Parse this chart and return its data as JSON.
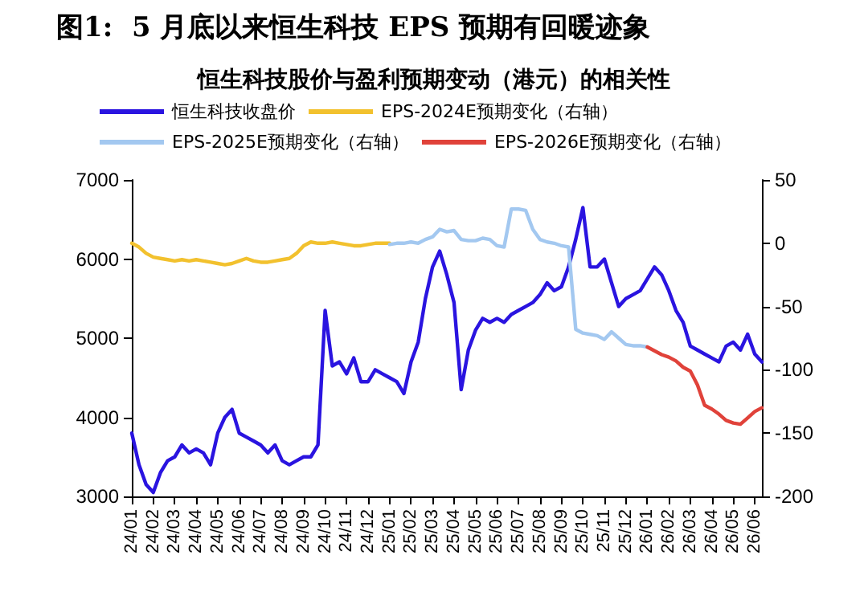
{
  "chart_data": {
    "type": "line",
    "title": "图1:  5 月底以来恒生科技 EPS 预期有回暖迹象",
    "subtitle": "恒生科技股价与盈利预期变动（港元）的相关性",
    "categories": [
      "24/01",
      null,
      null,
      "24/02",
      null,
      null,
      "24/03",
      null,
      null,
      "24/04",
      null,
      null,
      "24/05",
      null,
      null,
      "24/06",
      null,
      null,
      "24/07",
      null,
      null,
      "24/08",
      null,
      null,
      "24/09",
      null,
      null,
      "24/10",
      null,
      null,
      "24/11",
      null,
      null,
      "24/12",
      null,
      null,
      "25/01",
      null,
      null,
      "25/02",
      null,
      null,
      "25/03",
      null,
      null,
      "25/04",
      null,
      null,
      "25/05",
      null,
      null,
      "25/06",
      null,
      null,
      "25/07",
      null,
      null,
      "25/08",
      null,
      null,
      "25/09",
      null,
      null,
      "25/10",
      null,
      null,
      "25/11",
      null,
      null,
      "25/12",
      null,
      null,
      "26/01",
      null,
      null,
      "26/02",
      null,
      null,
      "26/03",
      null,
      null,
      "26/04",
      null,
      null,
      "26/05",
      null,
      null,
      "26/06",
      null
    ],
    "series": [
      {
        "name": "恒生科技收盘价",
        "color": "#2a14e0",
        "values": [
          3800,
          3400,
          3150,
          3050,
          3300,
          3450,
          3500,
          3650,
          3550,
          3600,
          3550,
          3400,
          3800,
          4000,
          4100,
          3800,
          3750,
          3700,
          3650,
          3550,
          3650,
          3450,
          3400,
          3450,
          3500,
          3500,
          3650,
          5350,
          4650,
          4700,
          4550,
          4750,
          4450,
          4450,
          4600,
          4550,
          4500,
          4450,
          4300,
          4700,
          4950,
          5500,
          5900,
          6100,
          5800,
          5450,
          4350,
          4850,
          5100,
          5250,
          5200,
          5250,
          5200,
          5300,
          5350,
          5400,
          5450,
          5550,
          5700,
          5600,
          5650,
          5900,
          6250,
          6650,
          5900,
          5900,
          6000,
          5700,
          5400,
          5500,
          5550,
          5600,
          5750,
          5900,
          5800,
          5600,
          5350,
          5200,
          4900,
          4850,
          4800,
          4750,
          4700,
          4900,
          4950,
          4850,
          5050,
          4800,
          4700
        ]
      },
      {
        "name": "EPS-2024E预期变化（右轴）",
        "color": "#f2c12e",
        "axis": "y2",
        "values": [
          0,
          -3,
          -8,
          -11,
          -12,
          -13,
          -14,
          -13,
          -14,
          -13,
          -14,
          -15,
          -16,
          -17,
          -16,
          -14,
          -12,
          -14,
          -15,
          -15,
          -14,
          -13,
          -12,
          -8,
          -2,
          1,
          0,
          0,
          1,
          0,
          -1,
          -2,
          -2,
          -1,
          0,
          0,
          0,
          null,
          null,
          null,
          null,
          null,
          null,
          null,
          null,
          null,
          null,
          null,
          null,
          null,
          null,
          null,
          null,
          null,
          null,
          null,
          null,
          null,
          null,
          null,
          null,
          null,
          null,
          null,
          null,
          null,
          null,
          null,
          null,
          null,
          null,
          null,
          null,
          null,
          null,
          null,
          null,
          null,
          null,
          null,
          null,
          null,
          null,
          null,
          null,
          null,
          null,
          null,
          null
        ]
      },
      {
        "name": "EPS-2025E预期变化（右轴）",
        "color": "#a3c8f0",
        "axis": "y2",
        "values": [
          null,
          null,
          null,
          null,
          null,
          null,
          null,
          null,
          null,
          null,
          null,
          null,
          null,
          null,
          null,
          null,
          null,
          null,
          null,
          null,
          null,
          null,
          null,
          null,
          null,
          null,
          null,
          null,
          null,
          null,
          null,
          null,
          null,
          null,
          null,
          null,
          -1,
          0,
          0,
          1,
          0,
          3,
          5,
          11,
          9,
          10,
          3,
          2,
          2,
          4,
          3,
          -2,
          -3,
          27,
          27,
          26,
          11,
          3,
          1,
          0,
          -2,
          -3,
          -68,
          -71,
          -72,
          -73,
          -76,
          -70,
          -75,
          -80,
          -81,
          -81,
          -82,
          null,
          null,
          null,
          null,
          null,
          null,
          null,
          null,
          null,
          null,
          null,
          null,
          null,
          null,
          null,
          null
        ]
      },
      {
        "name": "EPS-2026E预期变化（右轴）",
        "color": "#e0423a",
        "axis": "y2",
        "values": [
          null,
          null,
          null,
          null,
          null,
          null,
          null,
          null,
          null,
          null,
          null,
          null,
          null,
          null,
          null,
          null,
          null,
          null,
          null,
          null,
          null,
          null,
          null,
          null,
          null,
          null,
          null,
          null,
          null,
          null,
          null,
          null,
          null,
          null,
          null,
          null,
          null,
          null,
          null,
          null,
          null,
          null,
          null,
          null,
          null,
          null,
          null,
          null,
          null,
          null,
          null,
          null,
          null,
          null,
          null,
          null,
          null,
          null,
          null,
          null,
          null,
          null,
          null,
          null,
          null,
          null,
          null,
          null,
          null,
          null,
          null,
          null,
          -82,
          -85,
          -88,
          -90,
          -93,
          -98,
          -101,
          -112,
          -128,
          -131,
          -135,
          -140,
          -142,
          -143,
          -138,
          -133,
          -130
        ]
      }
    ],
    "ylim": [
      3000,
      7000
    ],
    "yticks": [
      3000,
      4000,
      5000,
      6000,
      7000
    ],
    "y2lim": [
      -200,
      50
    ],
    "y2ticks": [
      -200,
      -150,
      -100,
      -50,
      0,
      50
    ],
    "grid": false,
    "legend": "top",
    "marker": "none",
    "line_style": "solid"
  }
}
